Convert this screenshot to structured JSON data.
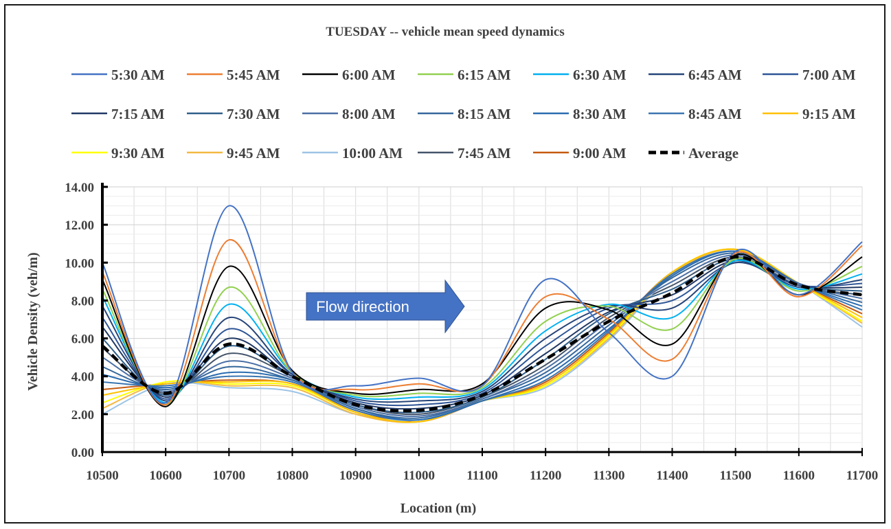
{
  "chart_data": {
    "type": "line",
    "title": "TUESDAY  -- vehicle mean speed dynamics",
    "xlabel": "Location (m)",
    "ylabel": "Vehicle Density (veh/m)",
    "xlim": [
      10500,
      11700
    ],
    "ylim": [
      0,
      14
    ],
    "grid": true,
    "legend_position": "top",
    "x": [
      10500,
      10600,
      10700,
      10800,
      10900,
      11000,
      11100,
      11200,
      11300,
      11400,
      11500,
      11600,
      11700
    ],
    "xticks": [
      "10500",
      "10600",
      "10700",
      "10800",
      "10900",
      "11000",
      "11100",
      "11200",
      "11300",
      "11400",
      "11500",
      "11600",
      "11700"
    ],
    "yticks": [
      "0.00",
      "2.00",
      "4.00",
      "6.00",
      "8.00",
      "10.00",
      "12.00",
      "14.00"
    ],
    "annotation": "Flow direction",
    "series": [
      {
        "name": "5:30 AM",
        "color": "#4472C4",
        "dashed": false,
        "values": [
          10.0,
          2.6,
          13.0,
          4.2,
          3.5,
          3.9,
          3.5,
          9.1,
          6.3,
          4.0,
          10.6,
          8.3,
          11.1
        ]
      },
      {
        "name": "5:45 AM",
        "color": "#ED7D31",
        "dashed": false,
        "values": [
          9.5,
          2.5,
          11.2,
          4.2,
          3.3,
          3.6,
          3.5,
          8.2,
          7.0,
          4.9,
          10.5,
          8.2,
          10.9
        ]
      },
      {
        "name": "6:00 AM",
        "color": "#000000",
        "dashed": false,
        "values": [
          9.1,
          2.4,
          9.8,
          4.3,
          3.1,
          3.3,
          3.6,
          7.6,
          7.5,
          5.7,
          10.4,
          8.3,
          10.3
        ]
      },
      {
        "name": "6:15 AM",
        "color": "#92D050",
        "dashed": false,
        "values": [
          8.6,
          2.5,
          8.7,
          4.2,
          3.0,
          3.1,
          3.4,
          6.9,
          7.7,
          6.5,
          10.2,
          8.5,
          9.8
        ]
      },
      {
        "name": "6:30 AM",
        "color": "#00B0F0",
        "dashed": false,
        "values": [
          8.2,
          2.6,
          7.8,
          4.2,
          2.9,
          2.9,
          3.3,
          6.4,
          7.8,
          7.1,
          10.1,
          8.6,
          9.4
        ]
      },
      {
        "name": "6:45 AM",
        "color": "#264478",
        "dashed": false,
        "values": [
          7.7,
          2.7,
          7.1,
          4.1,
          2.8,
          2.7,
          3.2,
          6.0,
          7.7,
          7.6,
          10.0,
          8.7,
          9.1
        ]
      },
      {
        "name": "7:00 AM",
        "color": "#2E5597",
        "dashed": false,
        "values": [
          7.1,
          2.8,
          6.5,
          4.1,
          2.7,
          2.5,
          3.1,
          5.6,
          7.6,
          8.0,
          10.0,
          8.8,
          8.9
        ]
      },
      {
        "name": "7:15 AM",
        "color": "#203864",
        "dashed": false,
        "values": [
          6.6,
          2.9,
          6.0,
          4.0,
          2.6,
          2.3,
          3.0,
          5.2,
          7.4,
          8.3,
          10.1,
          8.8,
          8.7
        ]
      },
      {
        "name": "7:30 AM",
        "color": "#2F5F8A",
        "dashed": false,
        "values": [
          6.0,
          3.0,
          5.6,
          4.0,
          2.5,
          2.1,
          2.9,
          4.9,
          7.3,
          8.6,
          10.2,
          8.8,
          8.5
        ]
      },
      {
        "name": "8:00 AM",
        "color": "#4A6FA5",
        "dashed": false,
        "values": [
          5.0,
          3.2,
          4.8,
          3.9,
          2.4,
          1.9,
          2.8,
          4.4,
          6.9,
          9.0,
          10.4,
          8.9,
          8.1
        ]
      },
      {
        "name": "8:15 AM",
        "color": "#35679B",
        "dashed": false,
        "values": [
          4.5,
          3.3,
          4.5,
          3.8,
          2.3,
          1.8,
          2.8,
          4.2,
          6.7,
          9.2,
          10.5,
          8.9,
          7.9
        ]
      },
      {
        "name": "8:30 AM",
        "color": "#2B6CB0",
        "dashed": false,
        "values": [
          4.1,
          3.4,
          4.2,
          3.8,
          2.3,
          1.7,
          2.7,
          4.0,
          6.5,
          9.3,
          10.6,
          8.9,
          7.7
        ]
      },
      {
        "name": "8:45 AM",
        "color": "#3A75B0",
        "dashed": false,
        "values": [
          3.7,
          3.5,
          4.0,
          3.7,
          2.2,
          1.7,
          2.7,
          3.8,
          6.4,
          9.4,
          10.6,
          8.9,
          7.5
        ]
      },
      {
        "name": "9:15 AM",
        "color": "#FFC000",
        "dashed": false,
        "values": [
          3.0,
          3.6,
          3.7,
          3.6,
          2.1,
          1.6,
          2.7,
          3.6,
          6.2,
          9.5,
          10.7,
          8.9,
          7.1
        ]
      },
      {
        "name": "9:30 AM",
        "color": "#FFFF00",
        "dashed": false,
        "values": [
          2.6,
          3.7,
          3.6,
          3.5,
          2.1,
          1.6,
          2.7,
          3.5,
          6.1,
          9.5,
          10.7,
          8.9,
          6.9
        ]
      },
      {
        "name": "9:45 AM",
        "color": "#F4B942",
        "dashed": false,
        "values": [
          2.3,
          3.7,
          3.5,
          3.4,
          2.0,
          1.6,
          2.7,
          3.5,
          6.0,
          9.4,
          10.7,
          8.9,
          6.8
        ]
      },
      {
        "name": "10:00 AM",
        "color": "#9DC3E6",
        "dashed": false,
        "values": [
          2.0,
          3.6,
          3.4,
          3.2,
          2.0,
          1.7,
          2.7,
          3.4,
          5.9,
          9.3,
          10.6,
          8.9,
          6.6
        ]
      },
      {
        "name": "7:45 AM",
        "color": "#44546A",
        "dashed": false,
        "values": [
          5.5,
          3.1,
          5.2,
          4.0,
          2.5,
          2.0,
          2.9,
          4.6,
          7.1,
          8.8,
          10.3,
          8.8,
          8.3
        ]
      },
      {
        "name": "9:00 AM",
        "color": "#C55A11",
        "dashed": false,
        "values": [
          3.3,
          3.6,
          3.8,
          3.6,
          2.2,
          1.6,
          2.7,
          3.7,
          6.3,
          9.5,
          10.7,
          8.9,
          7.3
        ]
      },
      {
        "name": "Average",
        "color": "#000000",
        "dashed": true,
        "values": [
          5.6,
          3.1,
          5.7,
          4.0,
          2.5,
          2.2,
          3.0,
          4.9,
          6.9,
          8.4,
          10.3,
          8.8,
          8.3
        ]
      }
    ]
  }
}
